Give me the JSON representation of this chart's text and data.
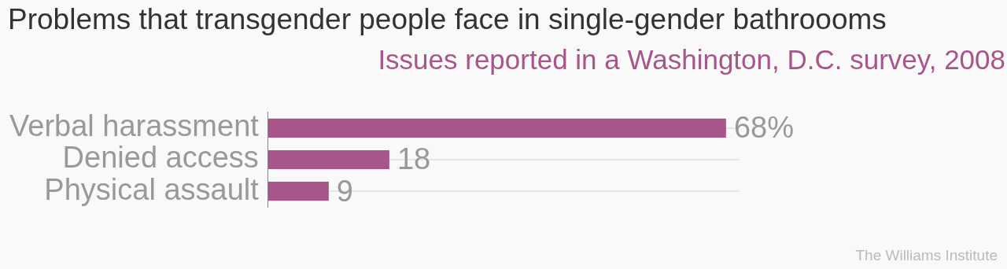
{
  "chart_data": {
    "type": "bar",
    "orientation": "horizontal",
    "title": "Problems that transgender people face in single-gender bathroooms",
    "subtitle": "Issues reported in a Washington, D.C. survey, 2008",
    "categories": [
      "Verbal harassment",
      "Denied access",
      "Physical assault"
    ],
    "values": [
      68,
      18,
      9
    ],
    "value_labels": [
      "68%",
      "18",
      "9"
    ],
    "color": "#a8568a",
    "grid": "y",
    "annotations": [
      "The Williams Institute"
    ]
  }
}
